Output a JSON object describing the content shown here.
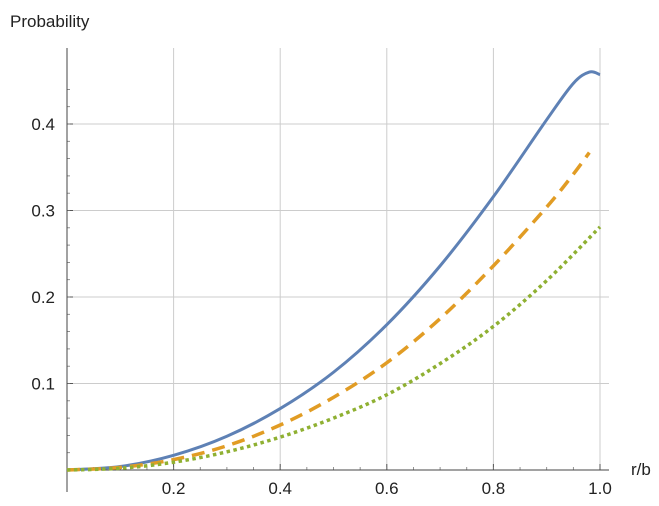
{
  "chart_data": {
    "type": "line",
    "title": "",
    "xlabel": "r/b",
    "ylabel": "Probability",
    "xlim": [
      0.0,
      1.0
    ],
    "ylim": [
      0.0,
      0.46
    ],
    "grid": true,
    "legend": "none",
    "x_ticks": [
      {
        "value": 0.2,
        "label": "0.2"
      },
      {
        "value": 0.4,
        "label": "0.4"
      },
      {
        "value": 0.6,
        "label": "0.6"
      },
      {
        "value": 0.8,
        "label": "0.8"
      },
      {
        "value": 1.0,
        "label": "1.0"
      }
    ],
    "y_ticks": [
      {
        "value": 0.1,
        "label": "0.1"
      },
      {
        "value": 0.2,
        "label": "0.2"
      },
      {
        "value": 0.3,
        "label": "0.3"
      },
      {
        "value": 0.4,
        "label": "0.4"
      }
    ],
    "series": [
      {
        "style": "solid",
        "color": "#5e81b5",
        "x": [
          0.0,
          0.1,
          0.2,
          0.3,
          0.4,
          0.5,
          0.6,
          0.7,
          0.8,
          0.9,
          0.95,
          0.98,
          1.0
        ],
        "y": [
          0.0,
          0.004,
          0.017,
          0.039,
          0.071,
          0.113,
          0.168,
          0.236,
          0.316,
          0.405,
          0.447,
          0.46,
          0.457
        ]
      },
      {
        "style": "dashed",
        "color": "#e19c24",
        "x": [
          0.0,
          0.1,
          0.2,
          0.3,
          0.4,
          0.5,
          0.6,
          0.7,
          0.8,
          0.9,
          0.95,
          0.98
        ],
        "y": [
          0.0,
          0.003,
          0.012,
          0.028,
          0.052,
          0.084,
          0.124,
          0.175,
          0.236,
          0.304,
          0.342,
          0.367
        ]
      },
      {
        "style": "dotted",
        "color": "#8fb032",
        "x": [
          0.0,
          0.1,
          0.2,
          0.3,
          0.4,
          0.5,
          0.6,
          0.7,
          0.8,
          0.9,
          1.0
        ],
        "y": [
          0.0,
          0.002,
          0.009,
          0.021,
          0.038,
          0.06,
          0.087,
          0.123,
          0.166,
          0.219,
          0.281
        ]
      }
    ]
  }
}
